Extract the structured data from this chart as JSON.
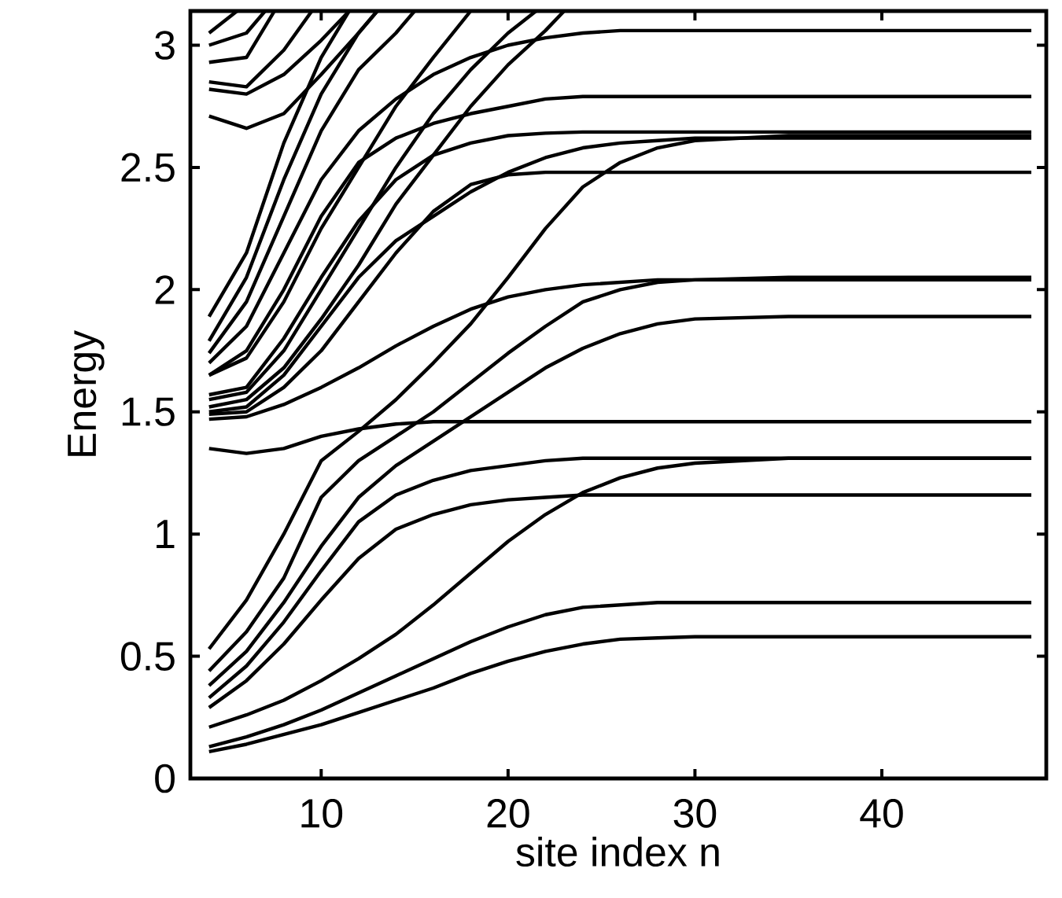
{
  "chart_data": {
    "type": "line",
    "xlabel": "site index n",
    "ylabel": "Energy",
    "xlim": [
      3,
      48.8
    ],
    "ylim": [
      0,
      3.14
    ],
    "xticks": [
      10,
      20,
      30,
      40
    ],
    "yticks": [
      0,
      0.5,
      1,
      1.5,
      2,
      2.5,
      3
    ],
    "marker": "none",
    "line_style": "solid",
    "x": [
      4,
      6,
      8,
      10,
      12,
      14,
      16,
      18,
      20,
      22,
      24,
      26,
      28,
      30,
      35,
      40,
      48
    ],
    "series": [
      {
        "color": "#000000",
        "values": [
          0.11,
          0.14,
          0.18,
          0.22,
          0.27,
          0.32,
          0.37,
          0.43,
          0.48,
          0.52,
          0.55,
          0.57,
          0.575,
          0.58,
          0.58,
          0.58,
          0.58
        ]
      },
      {
        "color": "#000000",
        "values": [
          0.13,
          0.17,
          0.22,
          0.28,
          0.35,
          0.42,
          0.49,
          0.56,
          0.62,
          0.67,
          0.7,
          0.71,
          0.72,
          0.72,
          0.72,
          0.72,
          0.72
        ]
      },
      {
        "color": "#000000",
        "values": [
          0.21,
          0.26,
          0.32,
          0.4,
          0.49,
          0.59,
          0.71,
          0.84,
          0.97,
          1.08,
          1.17,
          1.23,
          1.27,
          1.29,
          1.31,
          1.31,
          1.31
        ]
      },
      {
        "color": "#000000",
        "values": [
          0.29,
          0.4,
          0.55,
          0.73,
          0.9,
          1.02,
          1.08,
          1.12,
          1.14,
          1.15,
          1.16,
          1.16,
          1.16,
          1.16,
          1.16,
          1.16,
          1.16
        ]
      },
      {
        "color": "#000000",
        "values": [
          0.33,
          0.46,
          0.64,
          0.85,
          1.05,
          1.16,
          1.22,
          1.26,
          1.28,
          1.3,
          1.31,
          1.31,
          1.31,
          1.31,
          1.31,
          1.31,
          1.31
        ]
      },
      {
        "color": "#000000",
        "values": [
          1.35,
          1.33,
          1.35,
          1.4,
          1.43,
          1.45,
          1.46,
          1.46,
          1.46,
          1.46,
          1.46,
          1.46,
          1.46,
          1.46,
          1.46,
          1.46,
          1.46
        ]
      },
      {
        "color": "#000000",
        "values": [
          0.38,
          0.52,
          0.72,
          0.95,
          1.15,
          1.28,
          1.38,
          1.48,
          1.58,
          1.68,
          1.76,
          1.82,
          1.86,
          1.88,
          1.89,
          1.89,
          1.89
        ]
      },
      {
        "color": "#000000",
        "values": [
          0.44,
          0.6,
          0.82,
          1.15,
          1.3,
          1.4,
          1.5,
          1.62,
          1.74,
          1.85,
          1.95,
          2.0,
          2.03,
          2.04,
          2.05,
          2.05,
          2.05
        ]
      },
      {
        "color": "#000000",
        "values": [
          0.53,
          0.73,
          1.0,
          1.3,
          1.42,
          1.55,
          1.7,
          1.86,
          2.05,
          2.25,
          2.42,
          2.52,
          2.58,
          2.61,
          2.63,
          2.63,
          2.63
        ]
      },
      {
        "color": "#000000",
        "values": [
          1.47,
          1.48,
          1.53,
          1.6,
          1.68,
          1.77,
          1.85,
          1.92,
          1.97,
          2.0,
          2.02,
          2.03,
          2.04,
          2.04,
          2.04,
          2.04,
          2.04
        ]
      },
      {
        "color": "#000000",
        "values": [
          1.49,
          1.5,
          1.6,
          1.75,
          1.95,
          2.15,
          2.32,
          2.43,
          2.47,
          2.48,
          2.48,
          2.48,
          2.48,
          2.48,
          2.48,
          2.48,
          2.48
        ]
      },
      {
        "color": "#000000",
        "values": [
          1.5,
          1.52,
          1.65,
          1.85,
          2.05,
          2.2,
          2.3,
          2.4,
          2.48,
          2.54,
          2.58,
          2.6,
          2.61,
          2.62,
          2.62,
          2.62,
          2.62
        ]
      },
      {
        "color": "#000000",
        "values": [
          1.57,
          1.6,
          1.8,
          2.05,
          2.28,
          2.45,
          2.55,
          2.6,
          2.63,
          2.64,
          2.645,
          2.645,
          2.645,
          2.645,
          2.645,
          2.645,
          2.645
        ]
      },
      {
        "color": "#000000",
        "values": [
          1.65,
          1.75,
          2.0,
          2.3,
          2.52,
          2.62,
          2.68,
          2.72,
          2.75,
          2.78,
          2.79,
          2.79,
          2.79,
          2.79,
          2.79,
          2.79,
          2.79
        ]
      },
      {
        "color": "#000000",
        "values": [
          1.7,
          1.85,
          2.15,
          2.45,
          2.65,
          2.78,
          2.88,
          2.95,
          3.0,
          3.03,
          3.05,
          3.06,
          3.06,
          3.06,
          3.06,
          3.06,
          3.06
        ]
      },
      {
        "color": "#000000",
        "x": [
          4,
          6,
          8,
          10,
          12,
          14,
          15
        ],
        "values": [
          1.74,
          1.95,
          2.3,
          2.65,
          2.9,
          3.05,
          3.14
        ]
      },
      {
        "color": "#000000",
        "x": [
          4,
          6,
          8,
          10,
          12,
          13
        ],
        "values": [
          1.79,
          2.05,
          2.45,
          2.8,
          3.05,
          3.14
        ]
      },
      {
        "color": "#000000",
        "x": [
          4,
          6,
          8,
          10,
          11.5
        ],
        "values": [
          1.89,
          2.15,
          2.6,
          2.95,
          3.14
        ]
      },
      {
        "color": "#000000",
        "x": [
          4,
          6,
          8,
          10,
          12,
          14,
          16,
          18
        ],
        "values": [
          1.65,
          1.72,
          1.95,
          2.25,
          2.5,
          2.75,
          2.95,
          3.14
        ]
      },
      {
        "color": "#000000",
        "x": [
          4,
          6,
          8,
          10,
          12,
          14,
          16,
          18,
          20,
          22,
          23
        ],
        "values": [
          1.52,
          1.55,
          1.68,
          1.88,
          2.1,
          2.35,
          2.55,
          2.75,
          2.92,
          3.06,
          3.14
        ]
      },
      {
        "color": "#000000",
        "x": [
          4,
          6,
          8,
          10,
          12,
          14,
          16,
          18,
          20,
          21.5
        ],
        "values": [
          1.55,
          1.58,
          1.75,
          2.0,
          2.25,
          2.5,
          2.72,
          2.9,
          3.05,
          3.14
        ]
      },
      {
        "color": "#000000",
        "x": [
          4,
          6,
          8,
          10,
          12,
          13
        ],
        "values": [
          2.71,
          2.66,
          2.72,
          2.88,
          3.05,
          3.14
        ]
      },
      {
        "color": "#000000",
        "x": [
          4,
          6,
          8,
          10,
          11.5
        ],
        "values": [
          2.82,
          2.8,
          2.88,
          3.02,
          3.14
        ]
      },
      {
        "color": "#000000",
        "x": [
          4,
          6,
          8,
          9.5
        ],
        "values": [
          2.85,
          2.83,
          2.98,
          3.14
        ]
      },
      {
        "color": "#000000",
        "x": [
          4,
          6,
          7.5
        ],
        "values": [
          2.93,
          2.95,
          3.14
        ]
      },
      {
        "color": "#000000",
        "x": [
          4,
          6,
          7
        ],
        "values": [
          3.0,
          3.05,
          3.14
        ]
      },
      {
        "color": "#000000",
        "x": [
          4,
          5.5
        ],
        "values": [
          3.05,
          3.14
        ]
      }
    ]
  }
}
